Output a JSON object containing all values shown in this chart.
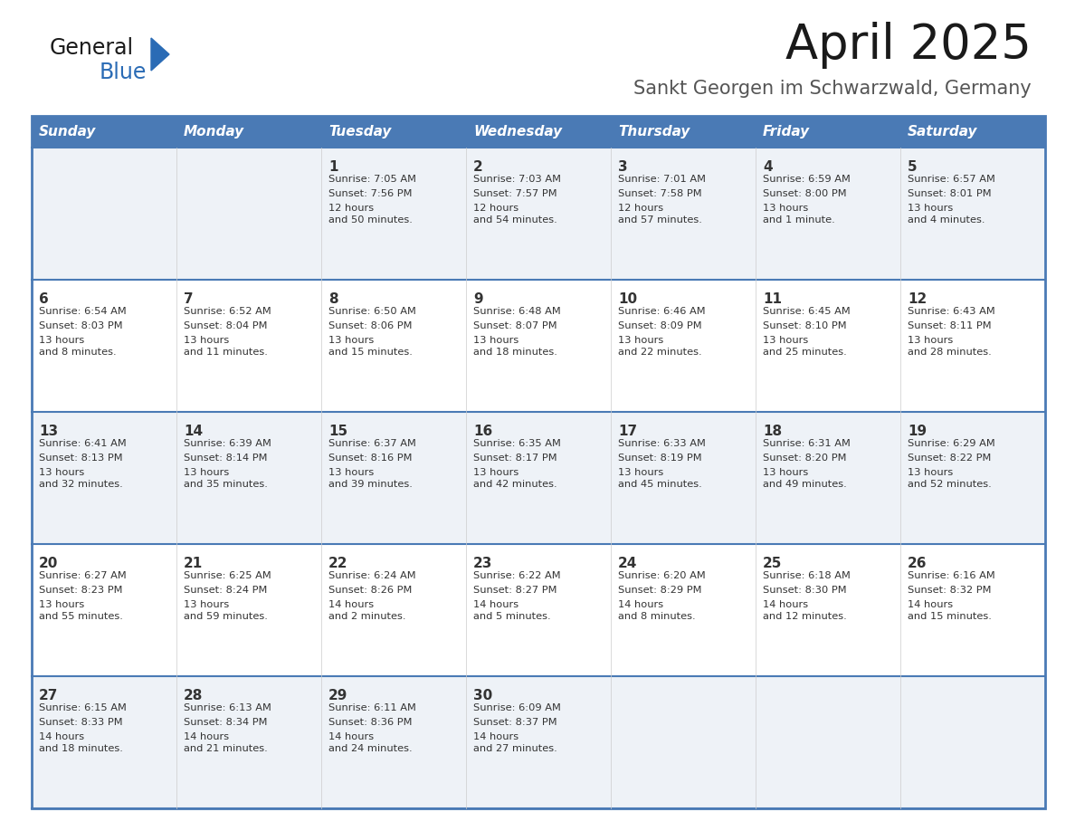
{
  "title": "April 2025",
  "subtitle": "Sankt Georgen im Schwarzwald, Germany",
  "days_of_week": [
    "Sunday",
    "Monday",
    "Tuesday",
    "Wednesday",
    "Thursday",
    "Friday",
    "Saturday"
  ],
  "header_bg": "#4a7ab5",
  "header_text": "#ffffff",
  "row_bg_even": "#eef2f7",
  "row_bg_odd": "#ffffff",
  "text_color": "#333333",
  "border_color": "#4a7ab5",
  "calendar_data": [
    [
      {
        "day": "",
        "sunrise": "",
        "sunset": "",
        "daylight": ""
      },
      {
        "day": "",
        "sunrise": "",
        "sunset": "",
        "daylight": ""
      },
      {
        "day": "1",
        "sunrise": "7:05 AM",
        "sunset": "7:56 PM",
        "daylight": "12 hours\nand 50 minutes."
      },
      {
        "day": "2",
        "sunrise": "7:03 AM",
        "sunset": "7:57 PM",
        "daylight": "12 hours\nand 54 minutes."
      },
      {
        "day": "3",
        "sunrise": "7:01 AM",
        "sunset": "7:58 PM",
        "daylight": "12 hours\nand 57 minutes."
      },
      {
        "day": "4",
        "sunrise": "6:59 AM",
        "sunset": "8:00 PM",
        "daylight": "13 hours\nand 1 minute."
      },
      {
        "day": "5",
        "sunrise": "6:57 AM",
        "sunset": "8:01 PM",
        "daylight": "13 hours\nand 4 minutes."
      }
    ],
    [
      {
        "day": "6",
        "sunrise": "6:54 AM",
        "sunset": "8:03 PM",
        "daylight": "13 hours\nand 8 minutes."
      },
      {
        "day": "7",
        "sunrise": "6:52 AM",
        "sunset": "8:04 PM",
        "daylight": "13 hours\nand 11 minutes."
      },
      {
        "day": "8",
        "sunrise": "6:50 AM",
        "sunset": "8:06 PM",
        "daylight": "13 hours\nand 15 minutes."
      },
      {
        "day": "9",
        "sunrise": "6:48 AM",
        "sunset": "8:07 PM",
        "daylight": "13 hours\nand 18 minutes."
      },
      {
        "day": "10",
        "sunrise": "6:46 AM",
        "sunset": "8:09 PM",
        "daylight": "13 hours\nand 22 minutes."
      },
      {
        "day": "11",
        "sunrise": "6:45 AM",
        "sunset": "8:10 PM",
        "daylight": "13 hours\nand 25 minutes."
      },
      {
        "day": "12",
        "sunrise": "6:43 AM",
        "sunset": "8:11 PM",
        "daylight": "13 hours\nand 28 minutes."
      }
    ],
    [
      {
        "day": "13",
        "sunrise": "6:41 AM",
        "sunset": "8:13 PM",
        "daylight": "13 hours\nand 32 minutes."
      },
      {
        "day": "14",
        "sunrise": "6:39 AM",
        "sunset": "8:14 PM",
        "daylight": "13 hours\nand 35 minutes."
      },
      {
        "day": "15",
        "sunrise": "6:37 AM",
        "sunset": "8:16 PM",
        "daylight": "13 hours\nand 39 minutes."
      },
      {
        "day": "16",
        "sunrise": "6:35 AM",
        "sunset": "8:17 PM",
        "daylight": "13 hours\nand 42 minutes."
      },
      {
        "day": "17",
        "sunrise": "6:33 AM",
        "sunset": "8:19 PM",
        "daylight": "13 hours\nand 45 minutes."
      },
      {
        "day": "18",
        "sunrise": "6:31 AM",
        "sunset": "8:20 PM",
        "daylight": "13 hours\nand 49 minutes."
      },
      {
        "day": "19",
        "sunrise": "6:29 AM",
        "sunset": "8:22 PM",
        "daylight": "13 hours\nand 52 minutes."
      }
    ],
    [
      {
        "day": "20",
        "sunrise": "6:27 AM",
        "sunset": "8:23 PM",
        "daylight": "13 hours\nand 55 minutes."
      },
      {
        "day": "21",
        "sunrise": "6:25 AM",
        "sunset": "8:24 PM",
        "daylight": "13 hours\nand 59 minutes."
      },
      {
        "day": "22",
        "sunrise": "6:24 AM",
        "sunset": "8:26 PM",
        "daylight": "14 hours\nand 2 minutes."
      },
      {
        "day": "23",
        "sunrise": "6:22 AM",
        "sunset": "8:27 PM",
        "daylight": "14 hours\nand 5 minutes."
      },
      {
        "day": "24",
        "sunrise": "6:20 AM",
        "sunset": "8:29 PM",
        "daylight": "14 hours\nand 8 minutes."
      },
      {
        "day": "25",
        "sunrise": "6:18 AM",
        "sunset": "8:30 PM",
        "daylight": "14 hours\nand 12 minutes."
      },
      {
        "day": "26",
        "sunrise": "6:16 AM",
        "sunset": "8:32 PM",
        "daylight": "14 hours\nand 15 minutes."
      }
    ],
    [
      {
        "day": "27",
        "sunrise": "6:15 AM",
        "sunset": "8:33 PM",
        "daylight": "14 hours\nand 18 minutes."
      },
      {
        "day": "28",
        "sunrise": "6:13 AM",
        "sunset": "8:34 PM",
        "daylight": "14 hours\nand 21 minutes."
      },
      {
        "day": "29",
        "sunrise": "6:11 AM",
        "sunset": "8:36 PM",
        "daylight": "14 hours\nand 24 minutes."
      },
      {
        "day": "30",
        "sunrise": "6:09 AM",
        "sunset": "8:37 PM",
        "daylight": "14 hours\nand 27 minutes."
      },
      {
        "day": "",
        "sunrise": "",
        "sunset": "",
        "daylight": ""
      },
      {
        "day": "",
        "sunrise": "",
        "sunset": "",
        "daylight": ""
      },
      {
        "day": "",
        "sunrise": "",
        "sunset": "",
        "daylight": ""
      }
    ]
  ]
}
